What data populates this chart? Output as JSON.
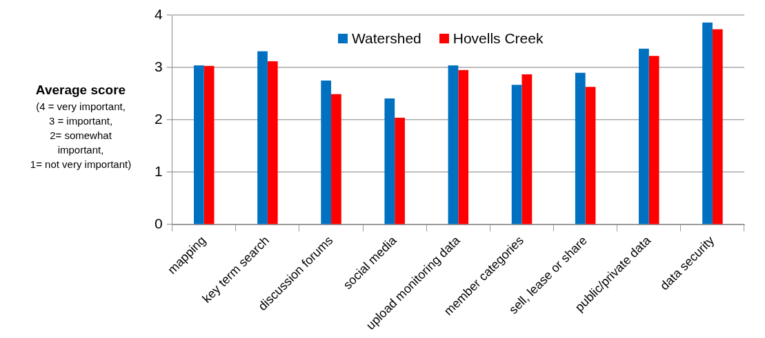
{
  "chart_data": {
    "type": "bar",
    "ylabel": "Average score\n(4 = very important,\n3 = important,\n2= somewhat\nimportant,\n1= not very important)",
    "categories": [
      "mapping",
      "key term search",
      "discussion forums",
      "social media",
      "upload monitoring data",
      "member categories",
      "sell, lease or share",
      "public/private data",
      "data security"
    ],
    "series": [
      {
        "name": "Watershed",
        "color": "#0070c0",
        "values": [
          3.04,
          3.31,
          2.75,
          2.41,
          3.04,
          2.67,
          2.9,
          3.36,
          3.86
        ]
      },
      {
        "name": "Hovells Creek",
        "color": "#ff0000",
        "values": [
          3.03,
          3.12,
          2.49,
          2.04,
          2.95,
          2.87,
          2.63,
          3.22,
          3.73
        ]
      }
    ],
    "ylim": [
      0,
      4
    ],
    "yticks": [
      0,
      1,
      2,
      3,
      4
    ],
    "grid": "y",
    "legend": "top"
  }
}
